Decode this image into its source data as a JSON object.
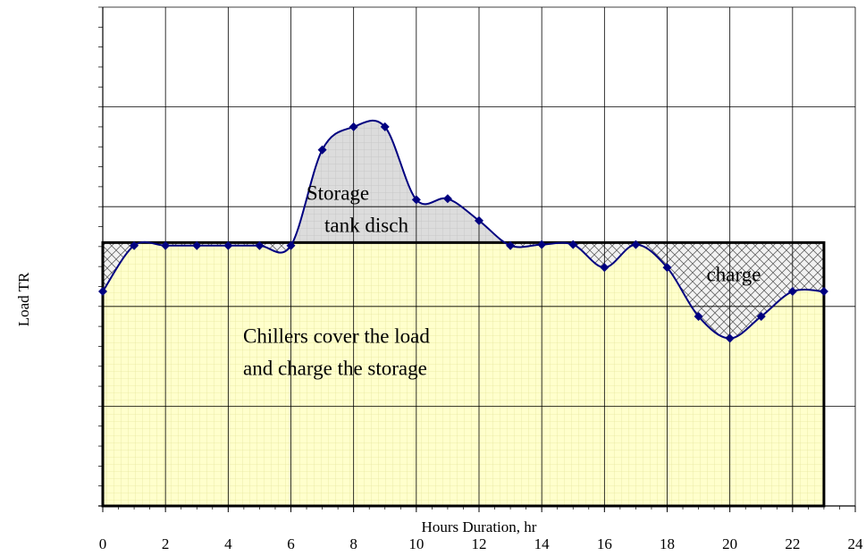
{
  "chart_data": {
    "type": "line",
    "x_label": "Hours Duration, hr",
    "y_label": "Load  TR",
    "x": [
      0,
      1,
      2,
      3,
      4,
      5,
      6,
      7,
      8,
      9,
      10,
      11,
      12,
      13,
      14,
      15,
      16,
      17,
      18,
      19,
      20,
      21,
      22,
      23
    ],
    "series": [
      {
        "name": "Load",
        "color": "#000080",
        "values": [
          2.15,
          2.61,
          2.61,
          2.61,
          2.61,
          2.61,
          2.61,
          3.57,
          3.8,
          3.8,
          3.07,
          3.08,
          2.86,
          2.61,
          2.62,
          2.62,
          2.39,
          2.62,
          2.39,
          1.9,
          1.68,
          1.9,
          2.15,
          2.15
        ]
      }
    ],
    "chiller_level": 2.64,
    "xlim": [
      0,
      24
    ],
    "xticks": [
      0,
      2,
      4,
      6,
      8,
      10,
      12,
      14,
      16,
      18,
      20,
      22,
      24
    ],
    "ylim": [
      0,
      5
    ],
    "yticks": [
      0,
      1,
      2,
      3,
      4,
      5
    ],
    "grid": true,
    "annotations": [
      "Storage",
      "tank disch",
      "charge",
      "Chillers cover the load",
      "and charge the storage"
    ]
  }
}
